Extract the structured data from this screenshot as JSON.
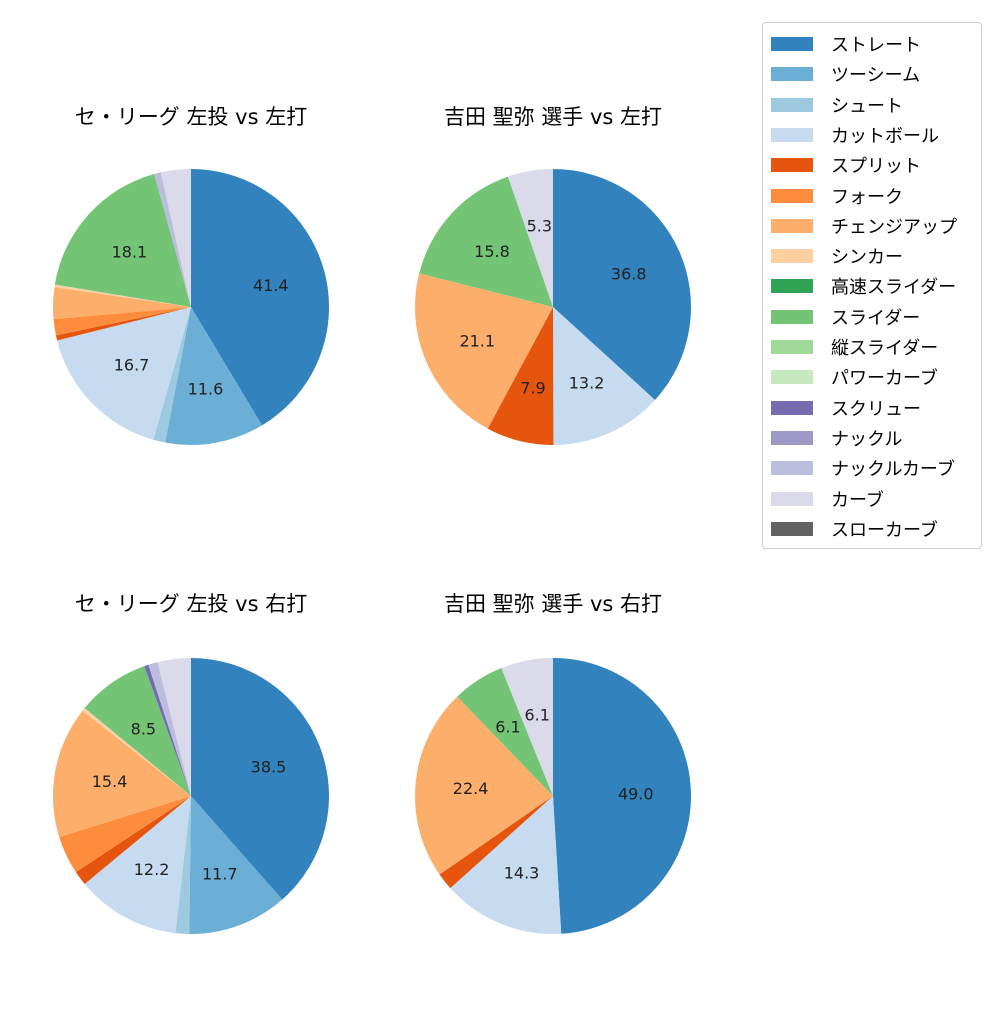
{
  "chart_data": [
    {
      "type": "pie",
      "title": "セ・リーグ 左投 vs 左打",
      "categories": [
        "ストレート",
        "ツーシーム",
        "シュート",
        "カットボール",
        "スプリット",
        "フォーク",
        "チェンジアップ",
        "シンカー",
        "スライダー",
        "ナックルカーブ",
        "カーブ"
      ],
      "values": [
        41.4,
        11.6,
        1.4,
        16.7,
        0.6,
        1.9,
        3.7,
        0.3,
        18.1,
        0.8,
        3.5
      ],
      "labels_shown": [
        "41.4",
        "11.6",
        "",
        "16.7",
        "",
        "",
        "",
        "",
        "18.1",
        "",
        ""
      ]
    },
    {
      "type": "pie",
      "title": "吉田 聖弥 選手 vs 左打",
      "categories": [
        "ストレート",
        "カットボール",
        "スプリット",
        "チェンジアップ",
        "スライダー",
        "カーブ"
      ],
      "values": [
        36.8,
        13.2,
        7.9,
        21.1,
        15.8,
        5.3
      ],
      "labels_shown": [
        "36.8",
        "13.2",
        "7.9",
        "21.1",
        "15.8",
        "5.3"
      ]
    },
    {
      "type": "pie",
      "title": "セ・リーグ 左投 vs 右打",
      "categories": [
        "ストレート",
        "ツーシーム",
        "シュート",
        "カットボール",
        "スプリット",
        "フォーク",
        "チェンジアップ",
        "シンカー",
        "スライダー",
        "スクリュー",
        "ナックルカーブ",
        "カーブ"
      ],
      "values": [
        38.5,
        11.7,
        1.6,
        12.2,
        1.7,
        4.5,
        15.4,
        0.4,
        8.5,
        0.5,
        1.1,
        3.9
      ],
      "labels_shown": [
        "38.5",
        "11.7",
        "",
        "12.2",
        "",
        "",
        "15.4",
        "",
        "8.5",
        "",
        "",
        ""
      ]
    },
    {
      "type": "pie",
      "title": "吉田 聖弥 選手 vs 右打",
      "categories": [
        "ストレート",
        "カットボール",
        "スプリット",
        "チェンジアップ",
        "スライダー",
        "カーブ"
      ],
      "values": [
        49.0,
        14.3,
        2.0,
        22.4,
        6.1,
        6.1
      ],
      "labels_shown": [
        "49.0",
        "14.3",
        "",
        "22.4",
        "6.1",
        "6.1"
      ]
    }
  ],
  "legend": {
    "position": "upper right",
    "items": [
      {
        "label": "ストレート",
        "color": "#3182bd"
      },
      {
        "label": "ツーシーム",
        "color": "#6baed6"
      },
      {
        "label": "シュート",
        "color": "#9ecae1"
      },
      {
        "label": "カットボール",
        "color": "#c6dbef"
      },
      {
        "label": "スプリット",
        "color": "#e6550d"
      },
      {
        "label": "フォーク",
        "color": "#fd8d3c"
      },
      {
        "label": "チェンジアップ",
        "color": "#fdae6b"
      },
      {
        "label": "シンカー",
        "color": "#fdd0a2"
      },
      {
        "label": "高速スライダー",
        "color": "#31a354"
      },
      {
        "label": "スライダー",
        "color": "#74c476"
      },
      {
        "label": "縦スライダー",
        "color": "#a1d99b"
      },
      {
        "label": "パワーカーブ",
        "color": "#c7e9c0"
      },
      {
        "label": "スクリュー",
        "color": "#756bb1"
      },
      {
        "label": "ナックル",
        "color": "#9e9ac8"
      },
      {
        "label": "ナックルカーブ",
        "color": "#bcbddc"
      },
      {
        "label": "カーブ",
        "color": "#dadaeb"
      },
      {
        "label": "スローカーブ",
        "color": "#636363"
      }
    ]
  }
}
